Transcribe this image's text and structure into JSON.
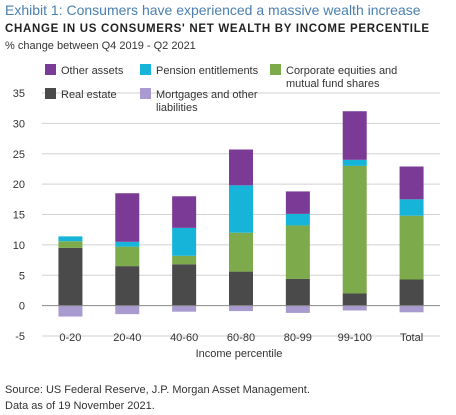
{
  "exhibit_title": "Exhibit 1: Consumers have experienced a massive wealth increase",
  "chart_data": {
    "type": "bar",
    "stacked": true,
    "title": "CHANGE IN US CONSUMERS' NET WEALTH BY INCOME PERCENTILE",
    "subtitle": "% change between Q4 2019 - Q2 2021",
    "xlabel": "Income percentile",
    "ylabel": "",
    "ylim": [
      -5,
      35
    ],
    "yticks": [
      -5,
      0,
      5,
      10,
      15,
      20,
      25,
      30,
      35
    ],
    "grid": true,
    "legend_position": "top",
    "categories": [
      "0-20",
      "20-40",
      "40-60",
      "60-80",
      "80-99",
      "99-100",
      "Total"
    ],
    "series": [
      {
        "name": "Real estate",
        "color": "#4a4a4a",
        "values": [
          9.5,
          6.5,
          6.8,
          5.6,
          4.4,
          2.0,
          4.3
        ]
      },
      {
        "name": "Corporate equities and mutual fund shares",
        "color": "#7daa4a",
        "values": [
          1.1,
          3.2,
          1.4,
          6.4,
          8.8,
          21.0,
          10.5
        ]
      },
      {
        "name": "Pension entitlements",
        "color": "#17b4d9",
        "values": [
          0.8,
          0.8,
          4.6,
          7.8,
          1.9,
          1.0,
          2.7
        ]
      },
      {
        "name": "Other assets",
        "color": "#7b3a96",
        "values": [
          0.0,
          8.0,
          5.2,
          5.9,
          3.7,
          8.0,
          5.4
        ]
      },
      {
        "name": "Mortgages and other liabilities",
        "color": "#a99bd0",
        "values": [
          -1.8,
          -1.4,
          -1.0,
          -0.9,
          -1.2,
          -0.8,
          -1.1
        ]
      }
    ]
  },
  "legend": [
    {
      "label": "Other assets",
      "color": "#7b3a96"
    },
    {
      "label": "Pension entitlements",
      "color": "#17b4d9"
    },
    {
      "label": "Corporate equities and mutual fund shares",
      "color": "#7daa4a"
    },
    {
      "label": "Real estate",
      "color": "#4a4a4a"
    },
    {
      "label": "Mortgages and other liabilities",
      "color": "#a99bd0"
    }
  ],
  "source": {
    "line1": "Source: US Federal Reserve, J.P. Morgan Asset Management.",
    "line2": "Data as of 19 November 2021."
  }
}
